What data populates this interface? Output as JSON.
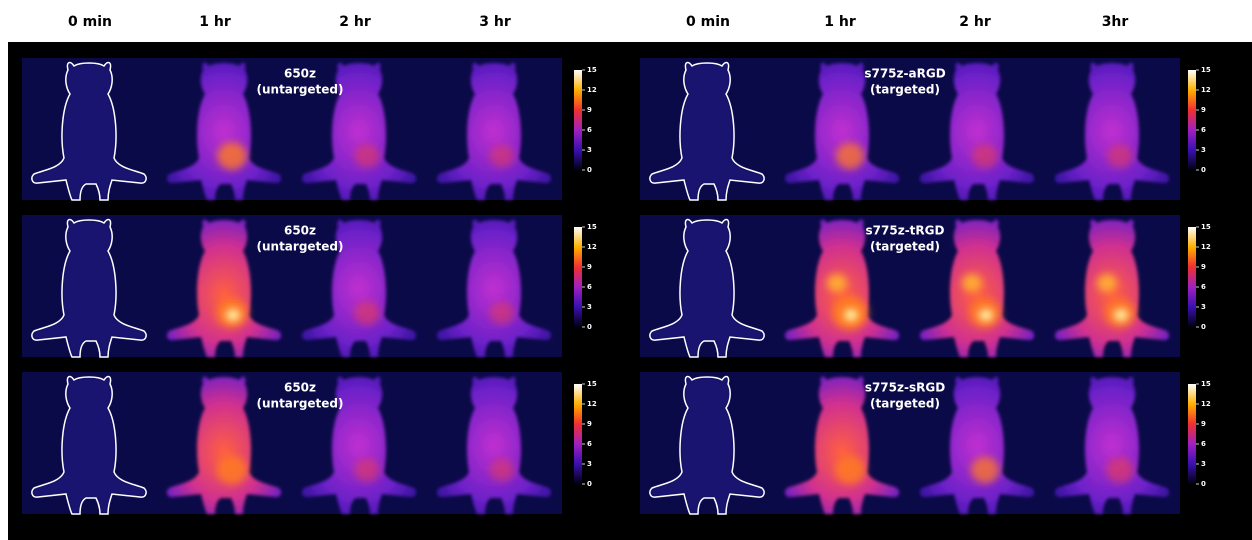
{
  "headers": {
    "left": [
      "0 min",
      "1 hr",
      "2 hr",
      "3 hr"
    ],
    "right": [
      "0 min",
      "1 hr",
      "2 hr",
      "3hr"
    ]
  },
  "panels": [
    {
      "label": "650z",
      "sublabel": "(untargeted)",
      "colorbar_ticks": [
        15,
        12,
        9,
        6,
        3,
        0
      ]
    },
    {
      "label": "650z",
      "sublabel": "(untargeted)",
      "colorbar_ticks": [
        15,
        12,
        9,
        6,
        3,
        0
      ]
    },
    {
      "label": "650z",
      "sublabel": "(untargeted)",
      "colorbar_ticks": [
        15,
        12,
        9,
        6,
        3,
        0
      ]
    },
    {
      "label": "s775z-aRGD",
      "sublabel": "(targeted)",
      "colorbar_ticks": [
        15,
        12,
        9,
        6,
        3,
        0
      ]
    },
    {
      "label": "s775z-tRGD",
      "sublabel": "(targeted)",
      "colorbar_ticks": [
        15,
        12,
        9,
        6,
        3,
        0
      ]
    },
    {
      "label": "s775z-sRGD",
      "sublabel": "(targeted)",
      "colorbar_ticks": [
        15,
        12,
        9,
        6,
        3,
        0
      ]
    }
  ]
}
